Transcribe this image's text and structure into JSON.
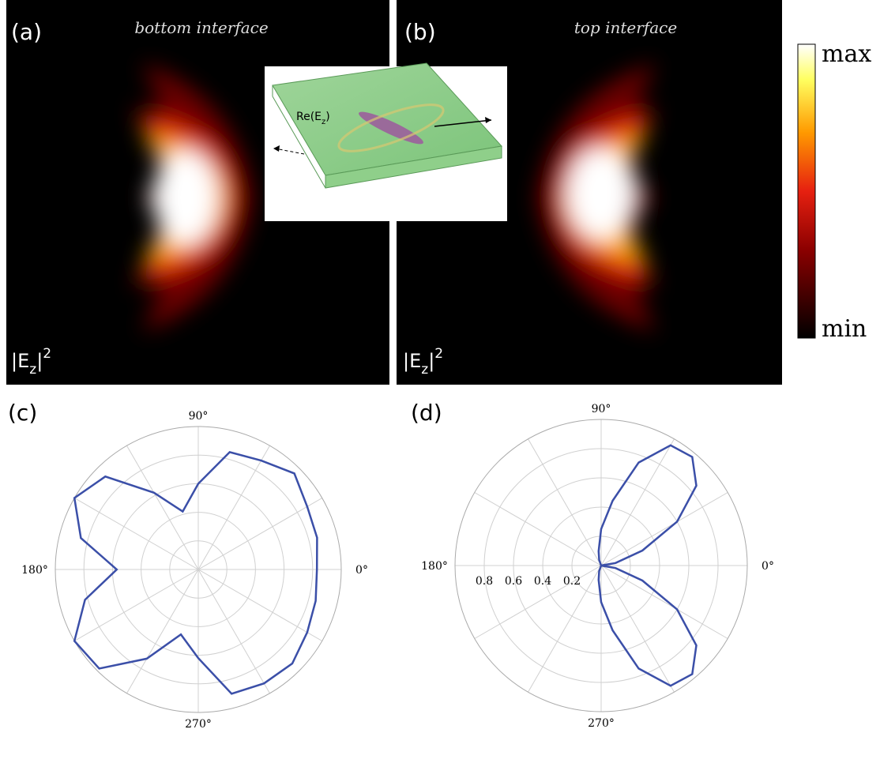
{
  "panels": [
    {
      "tag": "(a)",
      "title": "bottom interface",
      "label": {
        "base": "|E",
        "sub": "z",
        "tail": "|",
        "sup": "2"
      }
    },
    {
      "tag": "(b)",
      "title": "top interface",
      "label": {
        "base": "|E",
        "sub": "z",
        "tail": "|",
        "sup": "2"
      }
    }
  ],
  "inset": {
    "label": {
      "base": "Re(E",
      "sub": "z",
      "tail": ")"
    }
  },
  "colorbar": {
    "max": "max",
    "min": "min"
  },
  "chart_data": [
    {
      "type": "polar",
      "tag": "(c)",
      "rlim": [
        0,
        1
      ],
      "rgrid": [
        0.2,
        0.4,
        0.6,
        0.8
      ],
      "thetagrid": [
        0,
        30,
        60,
        90,
        120,
        150,
        180,
        210,
        240,
        270,
        300,
        330
      ],
      "thetaticks": [
        {
          "value": 0,
          "label": "0°"
        },
        {
          "value": 90,
          "label": "90°"
        },
        {
          "value": 180,
          "label": "180°"
        },
        {
          "value": 270,
          "label": "270°"
        }
      ],
      "color": "#3b4fa8",
      "theta": [
        0,
        15,
        30,
        45,
        60,
        75,
        90,
        105,
        120,
        135,
        150,
        165,
        180,
        195,
        210,
        225,
        240,
        255,
        270,
        285,
        300,
        315,
        330,
        345
      ],
      "r": [
        0.83,
        0.86,
        0.88,
        0.95,
        0.88,
        0.85,
        0.6,
        0.42,
        0.62,
        0.92,
        1.0,
        0.85,
        0.57,
        0.82,
        1.0,
        0.98,
        0.72,
        0.47,
        0.62,
        0.9,
        0.92,
        0.93,
        0.88,
        0.85
      ]
    },
    {
      "type": "polar",
      "tag": "(d)",
      "rlim": [
        0,
        1
      ],
      "rticks": [
        0.2,
        0.4,
        0.6,
        0.8
      ],
      "thetagrid": [
        0,
        30,
        60,
        90,
        120,
        150,
        180,
        210,
        240,
        270,
        300,
        330
      ],
      "thetaticks": [
        {
          "value": 0,
          "label": "0°"
        },
        {
          "value": 90,
          "label": "90°"
        },
        {
          "value": 180,
          "label": "180°"
        },
        {
          "value": 270,
          "label": "270°"
        }
      ],
      "color": "#3b4fa8",
      "theta": [
        0,
        10,
        20,
        30,
        40,
        50,
        60,
        70,
        80,
        90,
        100,
        110,
        120,
        240,
        250,
        260,
        270,
        280,
        290,
        300,
        310,
        320,
        330,
        340,
        350
      ],
      "r": [
        0,
        0.1,
        0.3,
        0.6,
        0.85,
        0.97,
        0.95,
        0.75,
        0.45,
        0.25,
        0.1,
        0.04,
        0,
        0,
        0.04,
        0.1,
        0.25,
        0.45,
        0.75,
        0.95,
        0.97,
        0.85,
        0.6,
        0.3,
        0.1
      ]
    }
  ]
}
